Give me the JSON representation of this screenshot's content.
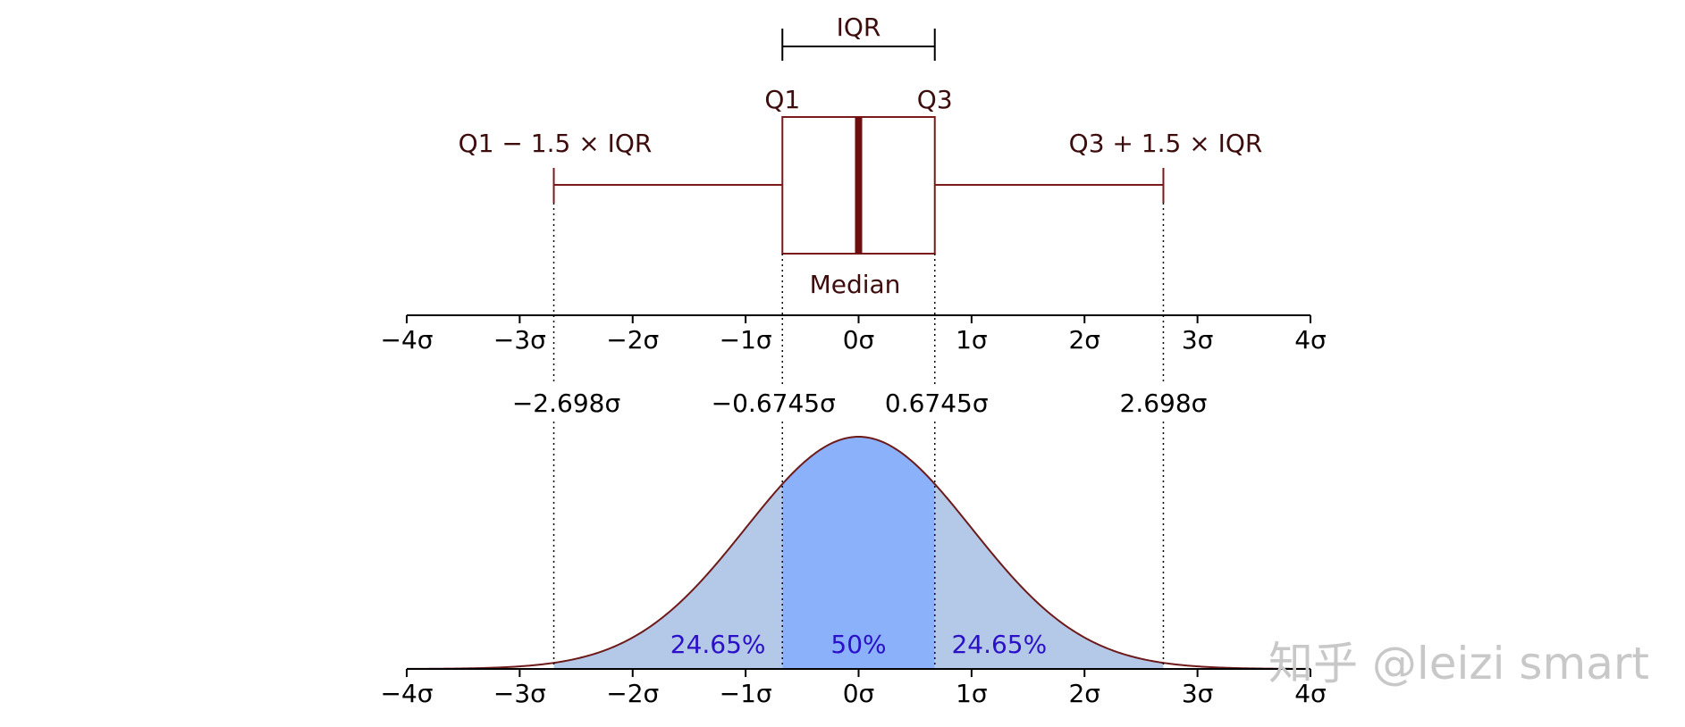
{
  "chart_data": [
    {
      "type": "box",
      "labels": {
        "iqr": "IQR",
        "q1": "Q1",
        "q3": "Q3",
        "lower_whisker": "Q1 − 1.5 × IQR",
        "upper_whisker": "Q3 + 1.5 × IQR",
        "median": "Median"
      },
      "values": {
        "lower_whisker": -2.698,
        "q1": -0.6745,
        "median": 0,
        "q3": 0.6745,
        "upper_whisker": 2.698
      },
      "xlim": [
        -4,
        4
      ],
      "x_ticks": [
        -4,
        -3,
        -2,
        -1,
        0,
        1,
        2,
        3,
        4
      ],
      "x_tick_labels": [
        "−4σ",
        "−3σ",
        "−2σ",
        "−1σ",
        "0σ",
        "1σ",
        "2σ",
        "3σ",
        "4σ"
      ],
      "colors": {
        "box_edge": "#7a1a1a",
        "median": "#6e0e0e"
      }
    },
    {
      "type": "area",
      "distribution": "normal",
      "mean": 0,
      "sd": 1,
      "xlim": [
        -4,
        4
      ],
      "x_ticks": [
        -4,
        -3,
        -2,
        -1,
        0,
        1,
        2,
        3,
        4
      ],
      "x_tick_labels": [
        "−4σ",
        "−3σ",
        "−2σ",
        "−1σ",
        "0σ",
        "1σ",
        "2σ",
        "3σ",
        "4σ"
      ],
      "boundaries": [
        -2.698,
        -0.6745,
        0.6745,
        2.698
      ],
      "boundary_labels": [
        "−2.698σ",
        "−0.6745σ",
        "0.6745σ",
        "2.698σ"
      ],
      "regions": [
        {
          "from": -2.698,
          "to": -0.6745,
          "label": "24.65%",
          "color": "#b4c8e8"
        },
        {
          "from": -0.6745,
          "to": 0.6745,
          "label": "50%",
          "color": "#8cb1fb"
        },
        {
          "from": 0.6745,
          "to": 2.698,
          "label": "24.65%",
          "color": "#b4c8e8"
        }
      ],
      "curve_color": "#6e1a1a"
    }
  ],
  "watermark": "知乎 @leizi smart"
}
